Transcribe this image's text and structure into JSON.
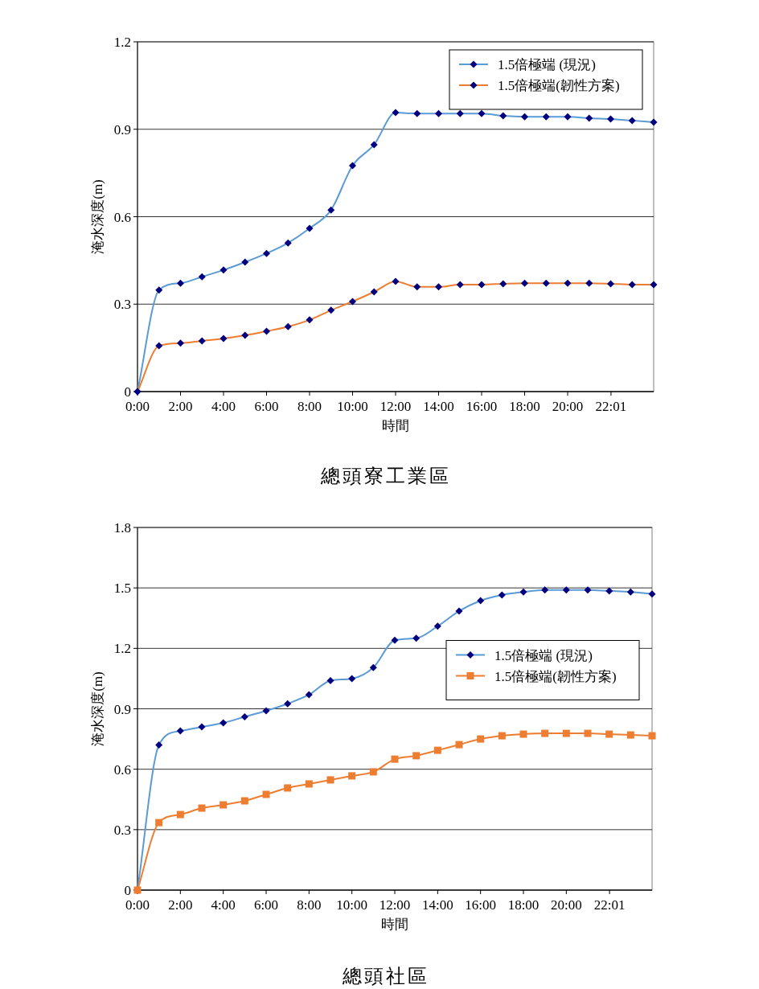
{
  "chart_data": [
    {
      "type": "line",
      "title": "總頭寮工業區",
      "xlabel": "時間",
      "ylabel": "淹水深度(m)",
      "x": [
        0,
        1,
        2,
        3,
        4,
        5,
        6,
        7,
        8,
        9,
        10,
        11,
        12,
        13,
        14,
        15,
        16,
        17,
        18,
        19,
        20,
        21,
        22,
        23,
        24
      ],
      "xlim": [
        0,
        24
      ],
      "xticks": [
        {
          "value": 0,
          "label": "0:00"
        },
        {
          "value": 2,
          "label": "2:00"
        },
        {
          "value": 4,
          "label": "4:00"
        },
        {
          "value": 6,
          "label": "6:00"
        },
        {
          "value": 8,
          "label": "8:00"
        },
        {
          "value": 10,
          "label": "10:00"
        },
        {
          "value": 12,
          "label": "12:00"
        },
        {
          "value": 14,
          "label": "14:00"
        },
        {
          "value": 16,
          "label": "16:00"
        },
        {
          "value": 18,
          "label": "18:00"
        },
        {
          "value": 20,
          "label": "20:00"
        },
        {
          "value": 22.0167,
          "label": "22:01"
        }
      ],
      "ylim": [
        0,
        1.2
      ],
      "yticks": [
        0,
        0.3,
        0.6,
        0.9,
        1.2
      ],
      "grid": "y",
      "legend": "top right",
      "series": [
        {
          "name": "1.5倍極端 (現況)",
          "color": "#5b9bd5",
          "marker": "diamond",
          "values": [
            0,
            0.348,
            0.372,
            0.394,
            0.417,
            0.444,
            0.474,
            0.51,
            0.56,
            0.623,
            0.775,
            0.847,
            0.957,
            0.954,
            0.954,
            0.954,
            0.954,
            0.946,
            0.943,
            0.943,
            0.943,
            0.938,
            0.935,
            0.93,
            0.924
          ]
        },
        {
          "name": "1.5倍極端(韌性方案)",
          "color": "#ed7d31",
          "marker": "diamond",
          "values": [
            0,
            0.157,
            0.166,
            0.174,
            0.182,
            0.193,
            0.207,
            0.223,
            0.246,
            0.279,
            0.309,
            0.342,
            0.378,
            0.359,
            0.359,
            0.367,
            0.367,
            0.37,
            0.372,
            0.372,
            0.372,
            0.372,
            0.37,
            0.367,
            0.367
          ]
        }
      ]
    },
    {
      "type": "line",
      "title": "總頭社區",
      "xlabel": "時間",
      "ylabel": "淹水深度(m)",
      "x": [
        0,
        1,
        2,
        3,
        4,
        5,
        6,
        7,
        8,
        9,
        10,
        11,
        12,
        13,
        14,
        15,
        16,
        17,
        18,
        19,
        20,
        21,
        22,
        23,
        24
      ],
      "xlim": [
        0,
        24
      ],
      "xticks": [
        {
          "value": 0,
          "label": "0:00"
        },
        {
          "value": 2,
          "label": "2:00"
        },
        {
          "value": 4,
          "label": "4:00"
        },
        {
          "value": 6,
          "label": "6:00"
        },
        {
          "value": 8,
          "label": "8:00"
        },
        {
          "value": 10,
          "label": "10:00"
        },
        {
          "value": 12,
          "label": "12:00"
        },
        {
          "value": 14,
          "label": "14:00"
        },
        {
          "value": 16,
          "label": "16:00"
        },
        {
          "value": 18,
          "label": "18:00"
        },
        {
          "value": 20,
          "label": "20:00"
        },
        {
          "value": 22.0167,
          "label": "22:01"
        }
      ],
      "ylim": [
        0,
        1.8
      ],
      "yticks": [
        0,
        0.3,
        0.6,
        0.9,
        1.2,
        1.5,
        1.8
      ],
      "grid": "y",
      "legend": "right",
      "series": [
        {
          "name": "1.5倍極端 (現況)",
          "color": "#5b9bd5",
          "marker": "diamond",
          "values": [
            0,
            0.72,
            0.79,
            0.81,
            0.83,
            0.86,
            0.89,
            0.925,
            0.97,
            1.04,
            1.05,
            1.105,
            1.24,
            1.25,
            1.31,
            1.385,
            1.437,
            1.465,
            1.48,
            1.49,
            1.49,
            1.49,
            1.485,
            1.48,
            1.47
          ]
        },
        {
          "name": "1.5倍極端(韌性方案)",
          "color": "#ed7d31",
          "marker": "square",
          "values": [
            0,
            0.335,
            0.375,
            0.407,
            0.423,
            0.443,
            0.475,
            0.507,
            0.527,
            0.547,
            0.567,
            0.587,
            0.65,
            0.667,
            0.694,
            0.722,
            0.75,
            0.766,
            0.774,
            0.778,
            0.778,
            0.778,
            0.774,
            0.77,
            0.766
          ]
        }
      ]
    }
  ]
}
